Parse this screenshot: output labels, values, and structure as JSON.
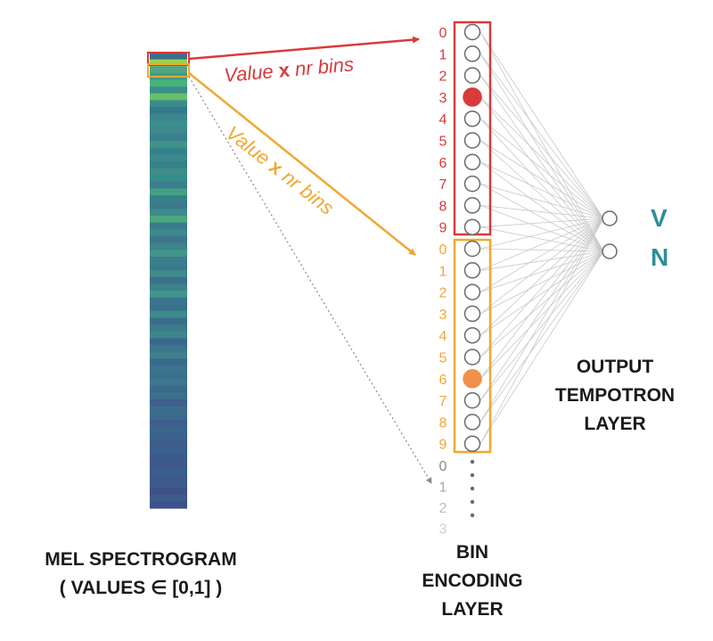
{
  "colors": {
    "red": "#d93a3a",
    "orange": "#f0a830",
    "orange_fill": "#f0904a",
    "gray": "#8a8a8a",
    "light_gray": "#c4c4c4",
    "teal": "#2f8f97",
    "connection": "#c8c8c8"
  },
  "spectrogram": {
    "caption_line1": "MEL SPECTROGRAM",
    "caption_line2": "( VALUES ∈ [0,1] )",
    "stripes": [
      "#3b6f8c",
      "#9ed14c",
      "#4fa683",
      "#3f9a8b",
      "#46b378",
      "#3a8f8c",
      "#66c067",
      "#3b8b8d",
      "#34798c",
      "#3d858c",
      "#3a8e8b",
      "#3d898c",
      "#3a7f8c",
      "#3f948a",
      "#35818c",
      "#3b888c",
      "#36808c",
      "#3d8e8a",
      "#358d8b",
      "#3c7e8c",
      "#42a183",
      "#36808c",
      "#3b7a8c",
      "#3f8a8c",
      "#4aa67e",
      "#397c8c",
      "#3c8a8c",
      "#3f758b",
      "#3a848c",
      "#41948a",
      "#3b7e8c",
      "#3a7a8d",
      "#3f8a8b",
      "#3a708c",
      "#3c838b",
      "#42958a",
      "#3a738d",
      "#38728c",
      "#3d8a8b",
      "#3a6d8c",
      "#3a7b8c",
      "#3f868b",
      "#38698d",
      "#3a758c",
      "#407f8b",
      "#3a6a8c",
      "#39738c",
      "#3a6f8c",
      "#3b788c",
      "#3a6b8d",
      "#3b6f8c",
      "#405e8c",
      "#3a6d8c",
      "#3b6a8c",
      "#3e5f8d",
      "#3a668c",
      "#3b628c",
      "#3d5c8c",
      "#3a608d",
      "#3b5a8c",
      "#3f5889",
      "#3a5e8c",
      "#3b5a8c",
      "#3c5a8b",
      "#3f4f88",
      "#3b5b8c",
      "#3c528a"
    ]
  },
  "arrows": {
    "upper_label_value": "Value",
    "upper_label_x": "x",
    "upper_label_rest": "nr bins",
    "lower_label_value": "Value",
    "lower_label_x": "x",
    "lower_label_rest": "nr bins"
  },
  "bins": {
    "groups": [
      {
        "name": "red",
        "indices": [
          "0",
          "1",
          "2",
          "3",
          "4",
          "5",
          "6",
          "7",
          "8",
          "9"
        ],
        "active": 3
      },
      {
        "name": "orange",
        "indices": [
          "0",
          "1",
          "2",
          "3",
          "4",
          "5",
          "6",
          "7",
          "8",
          "9"
        ],
        "active": 6
      }
    ],
    "faded_indices": [
      "0",
      "1",
      "2",
      "3"
    ],
    "caption_line1": "BIN",
    "caption_line2": "ENCODING",
    "caption_line3": "LAYER"
  },
  "output": {
    "neurons": [
      "V",
      "N"
    ],
    "caption_line1": "OUTPUT",
    "caption_line2": "TEMPOTRON",
    "caption_line3": "LAYER"
  }
}
